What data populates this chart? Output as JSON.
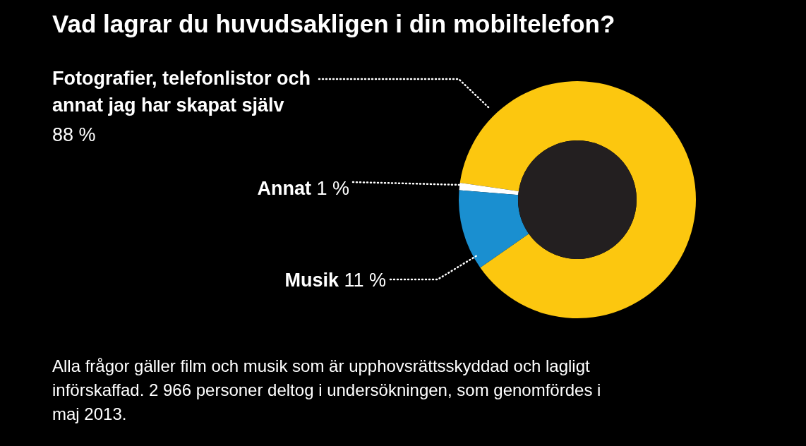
{
  "chart_data": {
    "type": "donut",
    "title": "Vad lagrar du huvudsakligen i din mobiltelefon?",
    "categories": [
      "Fotografier, telefonlistor och annat jag har skapat själv",
      "Annat",
      "Musik"
    ],
    "values": [
      88,
      1,
      11
    ],
    "colors": [
      "#fcc70f",
      "#ffffff",
      "#1a8fd0"
    ],
    "value_labels": [
      "88 %",
      "1 %",
      "11 %"
    ],
    "annotations": [
      "Alla frågor gäller film och musik som är upphovsrättsskyddad och lagligt införskaffad. 2 966 personer deltog i undersökningen, som genomfördes i maj 2013."
    ]
  }
}
